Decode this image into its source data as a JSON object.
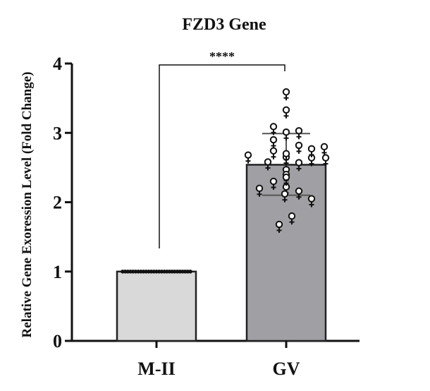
{
  "chart_data": {
    "type": "bar",
    "title": "FZD3 Gene",
    "ylabel": "Relative Gene Exoression Level (Fold Change)",
    "xlabel": "",
    "ylim": [
      0,
      4
    ],
    "yticks": [
      "0",
      "1",
      "2",
      "3",
      "4"
    ],
    "categories": [
      "M-II",
      "GV"
    ],
    "values": [
      1.0,
      2.54
    ],
    "error": {
      "GV": {
        "upper": 2.99,
        "lower": 2.1
      }
    },
    "points": {
      "M-II": [
        1,
        1,
        1,
        1,
        1,
        1,
        1,
        1,
        1,
        1,
        1,
        1,
        1,
        1,
        1,
        1,
        1,
        1,
        1,
        1,
        1,
        1,
        1,
        1,
        1,
        1,
        1
      ],
      "GV": [
        3.57,
        3.31,
        3.07,
        2.99,
        3.01,
        2.88,
        2.72,
        2.63,
        2.8,
        2.68,
        2.62,
        2.55,
        2.45,
        2.38,
        2.56,
        2.66,
        2.62,
        2.75,
        2.78,
        2.28,
        2.18,
        2.2,
        2.14,
        2.03,
        2.1,
        1.78,
        1.66,
        2.34
      ]
    },
    "significance": {
      "label": "****",
      "between": [
        "M-II",
        "GV"
      ]
    },
    "colors": {
      "M-II": "#d9d9d9",
      "GV": "#a0a0a4"
    },
    "marker": "female-symbol",
    "grid": false,
    "legend": "none"
  }
}
